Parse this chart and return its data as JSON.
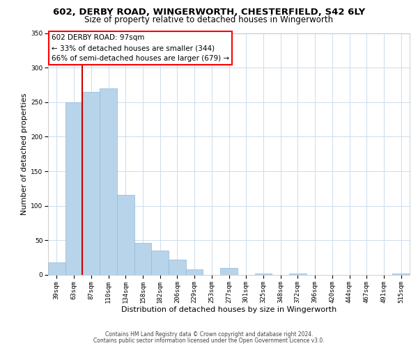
{
  "title1": "602, DERBY ROAD, WINGERWORTH, CHESTERFIELD, S42 6LY",
  "title2": "Size of property relative to detached houses in Wingerworth",
  "xlabel": "Distribution of detached houses by size in Wingerworth",
  "ylabel": "Number of detached properties",
  "categories": [
    "39sqm",
    "63sqm",
    "87sqm",
    "110sqm",
    "134sqm",
    "158sqm",
    "182sqm",
    "206sqm",
    "229sqm",
    "253sqm",
    "277sqm",
    "301sqm",
    "325sqm",
    "348sqm",
    "372sqm",
    "396sqm",
    "420sqm",
    "444sqm",
    "467sqm",
    "491sqm",
    "515sqm"
  ],
  "values": [
    18,
    250,
    265,
    270,
    116,
    46,
    35,
    22,
    8,
    0,
    10,
    0,
    2,
    0,
    2,
    0,
    0,
    0,
    0,
    0,
    2
  ],
  "bar_color": "#b8d4ea",
  "bar_edge_color": "#90b8d8",
  "vline_color": "#cc0000",
  "vline_position": 1.5,
  "ylim": [
    0,
    350
  ],
  "yticks": [
    0,
    50,
    100,
    150,
    200,
    250,
    300,
    350
  ],
  "annotation_title": "602 DERBY ROAD: 97sqm",
  "annotation_line1": "← 33% of detached houses are smaller (344)",
  "annotation_line2": "66% of semi-detached houses are larger (679) →",
  "footnote1": "Contains HM Land Registry data © Crown copyright and database right 2024.",
  "footnote2": "Contains public sector information licensed under the Open Government Licence v3.0.",
  "bg_color": "#ffffff",
  "grid_color": "#ccdcec",
  "title_fontsize": 9.5,
  "subtitle_fontsize": 8.5,
  "tick_fontsize": 6.5,
  "label_fontsize": 8,
  "ann_fontsize": 7.5,
  "footnote_fontsize": 5.5
}
